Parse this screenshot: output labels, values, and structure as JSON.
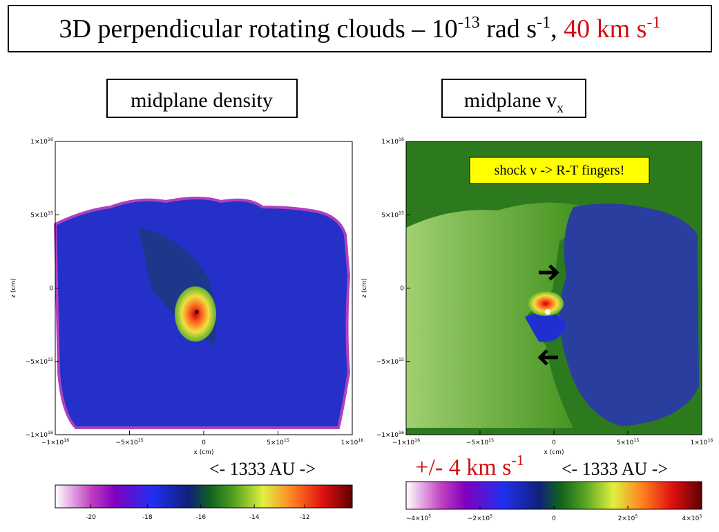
{
  "title": {
    "text": "3D perpendicular rotating clouds – 10",
    "exp1": "-13",
    "mid": " rad s",
    "exp2": "-1",
    "sep": ", ",
    "red": "40 km s",
    "exp3": "-1"
  },
  "panels": [
    {
      "label": "midplane density",
      "x_axis_label": "x (cm)",
      "y_axis_label": "z (cm)",
      "xticks": [
        {
          "base": "−1×10",
          "exp": "16"
        },
        {
          "base": "−5×10",
          "exp": "15"
        },
        {
          "base": "0",
          "exp": ""
        },
        {
          "base": "5×10",
          "exp": "15"
        },
        {
          "base": "1×10",
          "exp": "16"
        }
      ],
      "yticks": [
        {
          "base": "1×10",
          "exp": "16"
        },
        {
          "base": "5×10",
          "exp": "15"
        },
        {
          "base": "0",
          "exp": ""
        },
        {
          "base": "−5×10",
          "exp": "15"
        },
        {
          "base": "−1×10",
          "exp": "16"
        }
      ],
      "scale_note": "<- 1333 AU ->",
      "colorbar_ticks": [
        "-20",
        "-18",
        "-16",
        "-14",
        "-12"
      ]
    },
    {
      "label": "midplane v",
      "label_sub": "x",
      "x_axis_label": "x (cm)",
      "y_axis_label": "z (cm)",
      "xticks": [
        {
          "base": "−1×10",
          "exp": "16"
        },
        {
          "base": "−5×10",
          "exp": "15"
        },
        {
          "base": "0",
          "exp": ""
        },
        {
          "base": "5×10",
          "exp": "15"
        },
        {
          "base": "1×10",
          "exp": "16"
        }
      ],
      "yticks": [
        {
          "base": "1×10",
          "exp": "16"
        },
        {
          "base": "5×10",
          "exp": "15"
        },
        {
          "base": "0",
          "exp": ""
        },
        {
          "base": "−5×10",
          "exp": "15"
        },
        {
          "base": "−1×10",
          "exp": "16"
        }
      ],
      "annotation": "shock v -> R-T fingers!",
      "range_note": "+/- 4 km s",
      "range_note_exp": "-1",
      "scale_note": "<- 1333 AU ->",
      "colorbar_ticks": [
        {
          "base": "−4×10",
          "exp": "5"
        },
        {
          "base": "−2×10",
          "exp": "5"
        },
        {
          "base": "0",
          "exp": ""
        },
        {
          "base": "2×10",
          "exp": "5"
        },
        {
          "base": "4×10",
          "exp": "5"
        }
      ]
    }
  ]
}
